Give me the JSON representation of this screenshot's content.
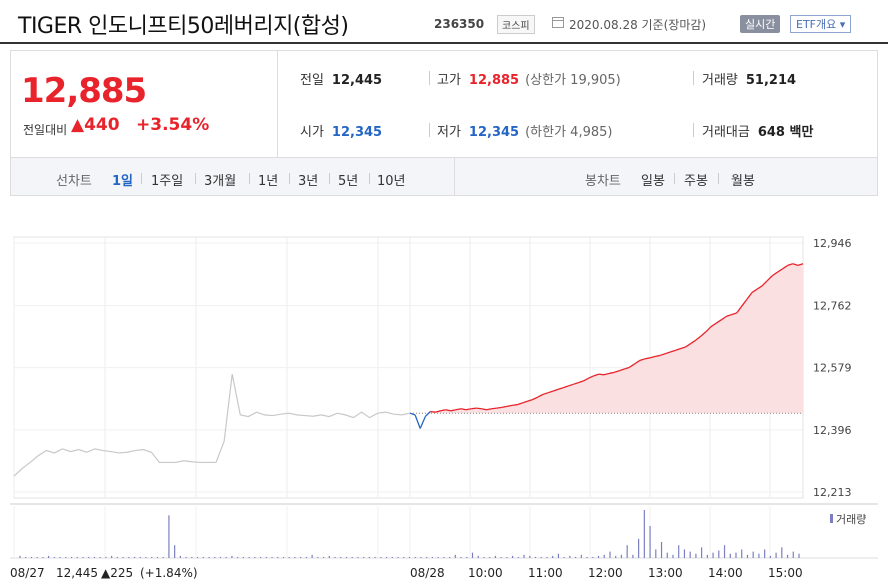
{
  "header": {
    "title": "TIGER 인도니프티50레버리지(합성)",
    "code": "236350",
    "market": "코스피",
    "date": "2020.08.28 기준(장마감)",
    "realtime": "실시간",
    "etf_summary": "ETF개요 ▾"
  },
  "price": {
    "current": "12,885",
    "change_label": "전일대비",
    "change": "▲440",
    "change_pct": "+3.54%"
  },
  "stats": {
    "prev_close_label": "전일",
    "prev_close": "12,445",
    "high_label": "고가",
    "high": "12,885",
    "upper_limit": "(상한가 19,905)",
    "volume_label": "거래량",
    "volume": "51,214",
    "open_label": "시가",
    "open": "12,345",
    "low_label": "저가",
    "low": "12,345",
    "lower_limit": "(하한가 4,985)",
    "trade_value_label": "거래대금",
    "trade_value": "648 백만"
  },
  "tabs": {
    "line_label": "선차트",
    "periods": [
      "1일",
      "1주일",
      "3개월",
      "1년",
      "3년",
      "5년",
      "10년"
    ],
    "selected": "1일",
    "candle_label": "봉차트",
    "candles": [
      "일봉",
      "주봉",
      "월봉"
    ]
  },
  "colors": {
    "up": "#e8232b",
    "down": "#2466c6",
    "grey_line": "#c8c8c8",
    "fill": "#fbe0e1"
  },
  "chart_data": {
    "type": "line",
    "y_ticks": [
      "12,946",
      "12,762",
      "12,579",
      "12,396",
      "12,213"
    ],
    "y_ticks_values": [
      12946,
      12762,
      12579,
      12396,
      12213
    ],
    "ylim": [
      12213,
      12946
    ],
    "prev_close": 12445,
    "x_labels": [
      "08/27",
      "08/28",
      "10:00",
      "11:00",
      "12:00",
      "13:00",
      "14:00",
      "15:00"
    ],
    "prev_day_label": "08/27",
    "prev_day_close": "12,445",
    "prev_day_change": "▲225",
    "prev_day_pct": "(+1.84%)",
    "volume_legend": "거래량",
    "series": [
      {
        "values": [
          12260,
          12282,
          12300,
          12320,
          12335,
          12328,
          12340,
          12332,
          12338,
          12330,
          12340,
          12335,
          12332,
          12328,
          12330,
          12335,
          12338,
          12330,
          12300,
          12300,
          12300,
          12305,
          12302,
          12300,
          12300,
          12300,
          12362,
          12560,
          12440,
          12435,
          12448,
          12440,
          12438,
          12442,
          12445,
          12440,
          12438,
          12436,
          12440,
          12435,
          12445,
          12440,
          12432,
          12448,
          12432,
          12445,
          12448,
          12442,
          12440,
          12445
        ]
      },
      {
        "values": [
          12445,
          12440,
          12400,
          12435,
          12450,
          12448,
          12452,
          12455,
          12452,
          12455,
          12458,
          12455,
          12458,
          12460,
          12458,
          12455,
          12458,
          12460,
          12462,
          12465,
          12468,
          12470,
          12475,
          12480,
          12485,
          12492,
          12500,
          12505,
          12510,
          12515,
          12520,
          12525,
          12530,
          12535,
          12540,
          12548,
          12555,
          12560,
          12558,
          12562,
          12565,
          12570,
          12575,
          12580,
          12590,
          12600,
          12605,
          12608,
          12612,
          12615,
          12620,
          12625,
          12630,
          12635,
          12640,
          12650,
          12660,
          12672,
          12685,
          12700,
          12710,
          12720,
          12730,
          12735,
          12740,
          12760,
          12780,
          12800,
          12810,
          12820,
          12835,
          12850,
          12860,
          12870,
          12880,
          12885,
          12880,
          12885
        ]
      }
    ],
    "volume": [
      2,
      1,
      1,
      1,
      1,
      2,
      1,
      1,
      1,
      1,
      1,
      1,
      1,
      1,
      1,
      1,
      2,
      1,
      1,
      1,
      1,
      1,
      1,
      1,
      1,
      1,
      40,
      12,
      2,
      1,
      1,
      1,
      1,
      1,
      1,
      1,
      1,
      2,
      1,
      1,
      1,
      1,
      1,
      1,
      1,
      1,
      1,
      1,
      1,
      1,
      1,
      3,
      1,
      1,
      2,
      1,
      1,
      1,
      1,
      1,
      1,
      1,
      1,
      1,
      1,
      1,
      1,
      1,
      1,
      1,
      1,
      1,
      1,
      1,
      1,
      1,
      3,
      1,
      1,
      5,
      2,
      1,
      1,
      2,
      1,
      1,
      2,
      1,
      3,
      2,
      1,
      1,
      1,
      2,
      4,
      1,
      2,
      1,
      3,
      1,
      1,
      2,
      3,
      6,
      2,
      3,
      12,
      3,
      18,
      45,
      30,
      8,
      15,
      5,
      3,
      12,
      8,
      6,
      4,
      10,
      3,
      5,
      7,
      12,
      4,
      5,
      8,
      3,
      6,
      4,
      8,
      2,
      5,
      10,
      3,
      6,
      4
    ]
  }
}
